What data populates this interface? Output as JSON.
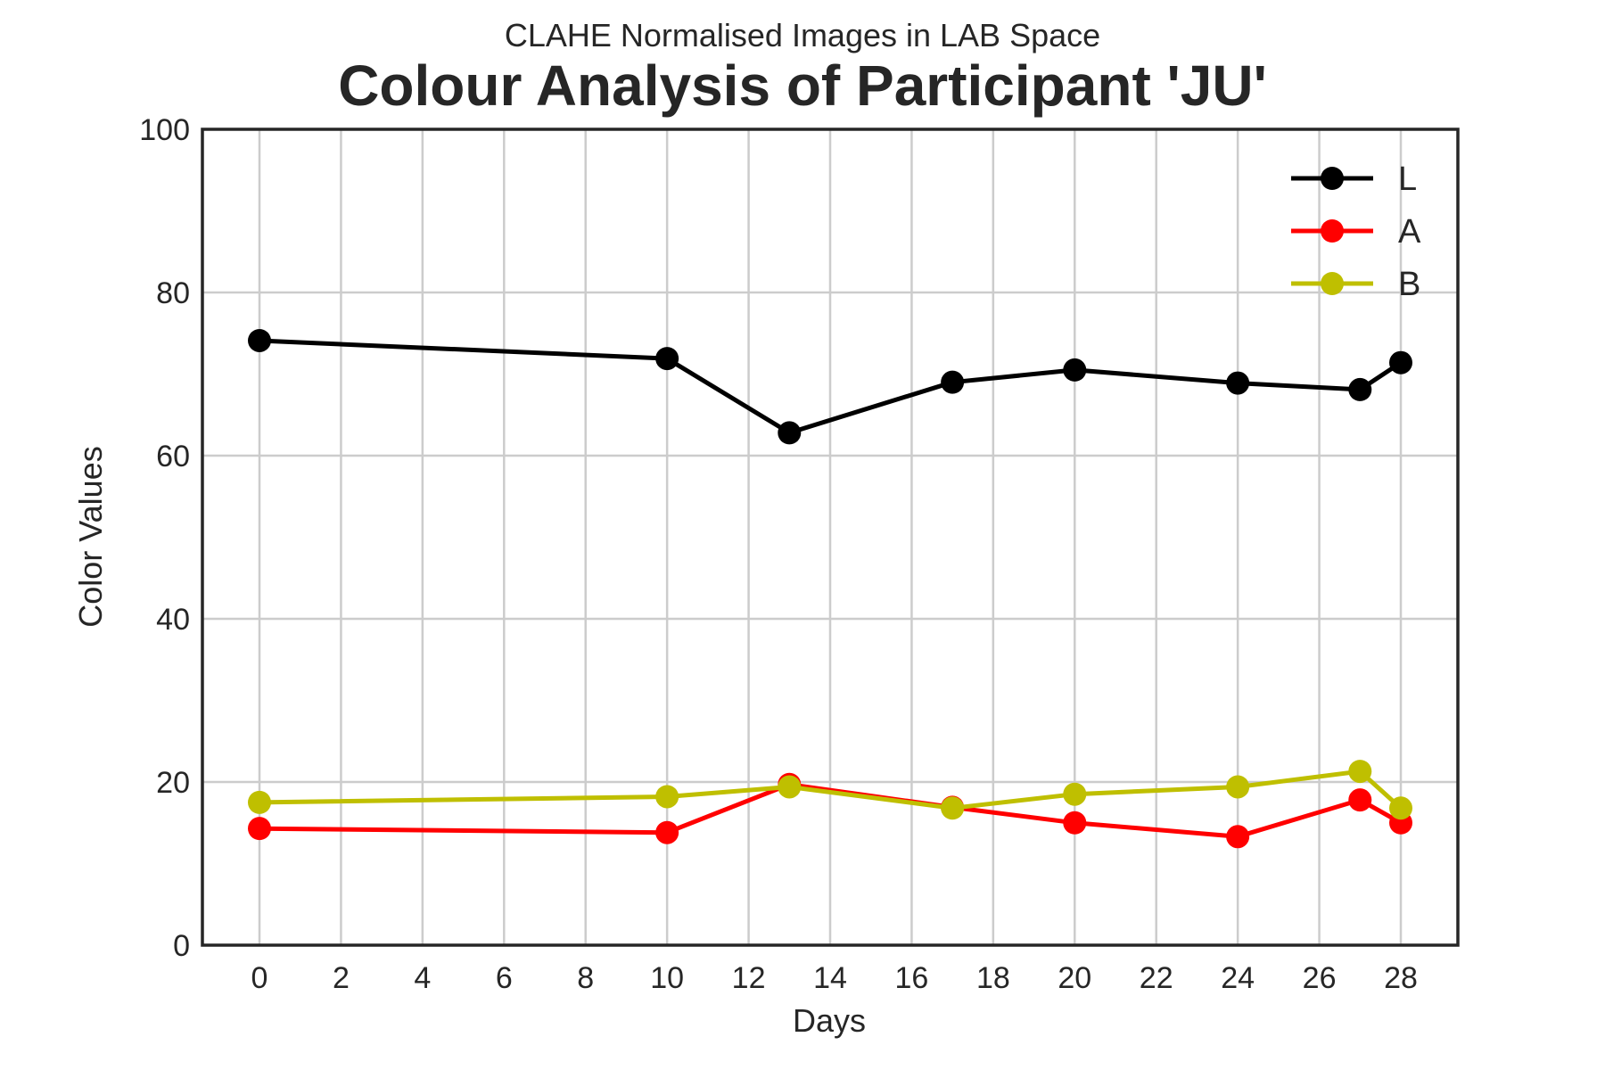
{
  "chart_data": {
    "type": "line",
    "subtitle": "CLAHE Normalised Images in LAB Space",
    "title": "Colour Analysis of Participant 'JU'",
    "xlabel": "Days",
    "ylabel": "Color Values",
    "xlim": [
      -1.4,
      29.4
    ],
    "ylim": [
      0,
      100
    ],
    "xticks": [
      0,
      2,
      4,
      6,
      8,
      10,
      12,
      14,
      16,
      18,
      20,
      22,
      24,
      26,
      28
    ],
    "yticks": [
      0,
      20,
      40,
      60,
      80,
      100
    ],
    "grid": true,
    "legend_position": "top-right",
    "x": [
      0,
      10,
      13,
      17,
      20,
      24,
      27,
      28
    ],
    "series": [
      {
        "name": "L",
        "color": "#000000",
        "values": [
          74.1,
          71.9,
          62.8,
          69.0,
          70.5,
          68.9,
          68.1,
          71.4
        ]
      },
      {
        "name": "A",
        "color": "#ff0000",
        "values": [
          14.3,
          13.8,
          19.7,
          16.9,
          15.0,
          13.3,
          17.8,
          15.0
        ]
      },
      {
        "name": "B",
        "color": "#bfbf00",
        "values": [
          17.5,
          18.2,
          19.4,
          16.8,
          18.5,
          19.4,
          21.3,
          16.8
        ]
      }
    ]
  }
}
